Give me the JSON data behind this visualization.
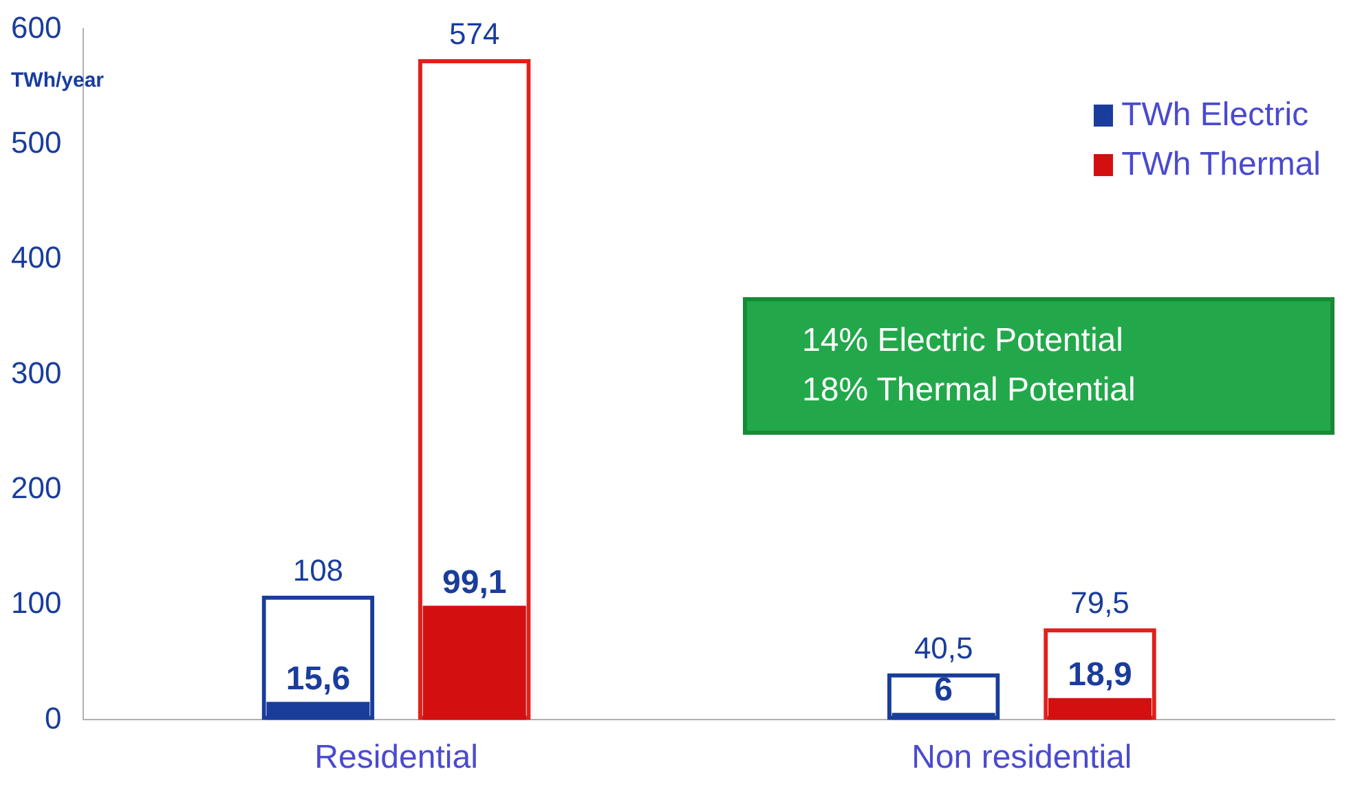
{
  "chart_data": {
    "type": "bar",
    "ylabel": "TWh/year",
    "categories": [
      "Residential",
      "Non residential"
    ],
    "series": [
      {
        "color": "#1a3d9c",
        "values": [
          108,
          40.5
        ],
        "value_labels": [
          "108",
          "40,5"
        ]
      },
      {
        "color": "#e0201c",
        "values": [
          574,
          79.5
        ],
        "value_labels": [
          "574",
          "79,5"
        ]
      },
      {
        "name": "TWh Electric",
        "color": "#1a3d9c",
        "values": [
          15.6,
          6
        ],
        "value_labels": [
          "15,6",
          "6"
        ]
      },
      {
        "name": "TWh Thermal",
        "color": "#d40f0f",
        "values": [
          99.1,
          18.9
        ],
        "value_labels": [
          "99,1",
          "18,9"
        ]
      }
    ],
    "ylim": [
      0,
      600
    ],
    "yticks": [
      0,
      100,
      200,
      300,
      400,
      500,
      600
    ],
    "grid": false,
    "legend": "top right",
    "annotations": [
      "14% Electric Potential",
      "18% Thermal Potential"
    ]
  }
}
